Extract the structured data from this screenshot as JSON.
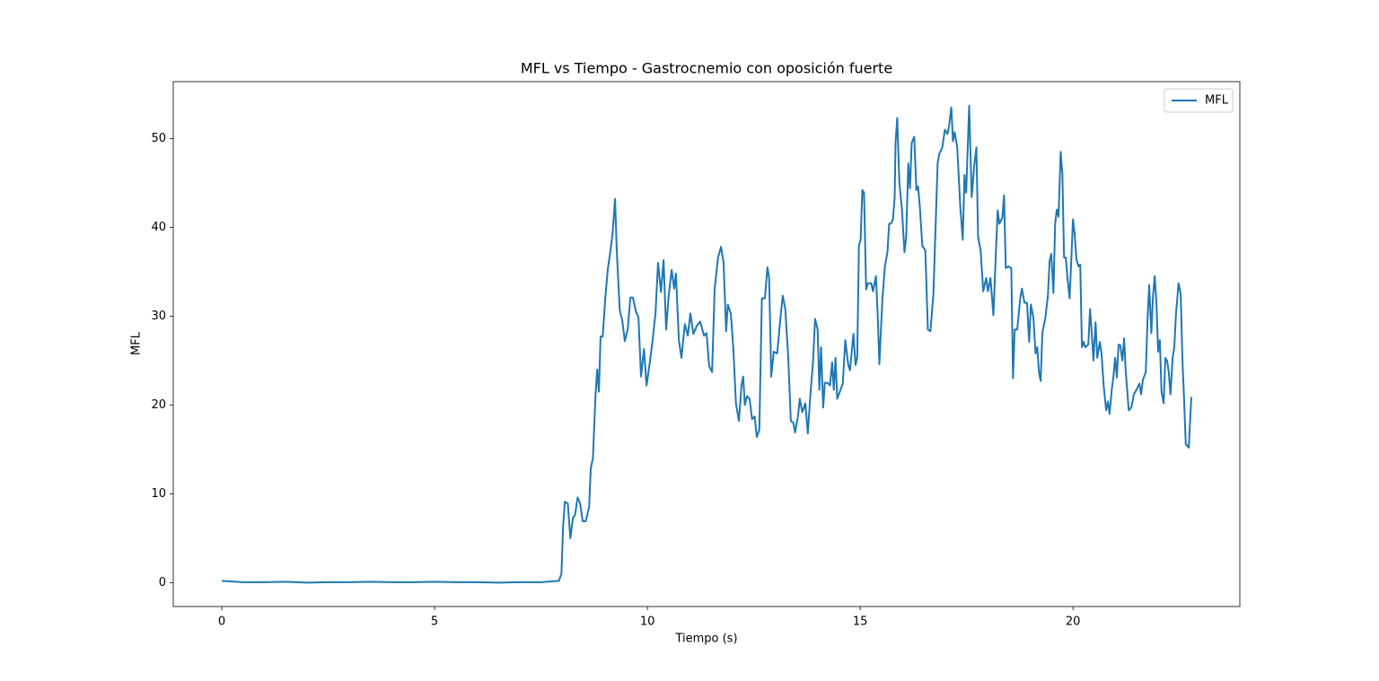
{
  "chart_data": {
    "type": "line",
    "title": "MFL vs Tiempo - Gastrocnemio con oposición fuerte",
    "x_label": "Tiempo (s)",
    "y_label": "MFL",
    "x": [
      0,
      0.5,
      1,
      1.5,
      2,
      2.5,
      3,
      3.5,
      4,
      4.5,
      5,
      5.5,
      6,
      6.5,
      7,
      7.5,
      7.92,
      7.98,
      8.02,
      8.06,
      8.13,
      8.19,
      8.25,
      8.3,
      8.36,
      8.42,
      8.48,
      8.55,
      8.63,
      8.67,
      8.72,
      8.78,
      8.82,
      8.86,
      8.9,
      8.95,
      9.01,
      9.07,
      9.13,
      9.18,
      9.24,
      9.28,
      9.35,
      9.41,
      9.47,
      9.54,
      9.6,
      9.66,
      9.73,
      9.79,
      9.85,
      9.92,
      9.98,
      10.06,
      10.12,
      10.19,
      10.25,
      10.32,
      10.38,
      10.44,
      10.5,
      10.57,
      10.63,
      10.67,
      10.74,
      10.8,
      10.88,
      10.95,
      11.01,
      11.08,
      11.16,
      11.24,
      11.33,
      11.39,
      11.45,
      11.52,
      11.58,
      11.66,
      11.73,
      11.79,
      11.85,
      11.89,
      11.96,
      12.02,
      12.08,
      12.15,
      12.21,
      12.25,
      12.29,
      12.34,
      12.4,
      12.46,
      12.52,
      12.57,
      12.63,
      12.69,
      12.76,
      12.82,
      12.86,
      12.91,
      12.97,
      13.05,
      13.12,
      13.18,
      13.24,
      13.31,
      13.37,
      13.43,
      13.47,
      13.54,
      13.58,
      13.64,
      13.71,
      13.77,
      13.83,
      13.89,
      13.94,
      14.0,
      14.04,
      14.08,
      14.13,
      14.17,
      14.23,
      14.29,
      14.34,
      14.38,
      14.42,
      14.46,
      14.53,
      14.59,
      14.65,
      14.72,
      14.76,
      14.84,
      14.89,
      14.93,
      14.97,
      15.01,
      15.05,
      15.09,
      15.14,
      15.18,
      15.26,
      15.3,
      15.37,
      15.41,
      15.45,
      15.52,
      15.58,
      15.64,
      15.68,
      15.72,
      15.77,
      15.81,
      15.83,
      15.87,
      15.92,
      15.98,
      16.04,
      16.08,
      16.13,
      16.17,
      16.21,
      16.27,
      16.32,
      16.36,
      16.4,
      16.46,
      16.53,
      16.59,
      16.65,
      16.72,
      16.78,
      16.82,
      16.86,
      16.93,
      16.99,
      17.05,
      17.09,
      17.14,
      17.18,
      17.22,
      17.28,
      17.35,
      17.41,
      17.45,
      17.49,
      17.56,
      17.62,
      17.68,
      17.73,
      17.77,
      17.83,
      17.89,
      17.96,
      18.0,
      18.06,
      18.13,
      18.19,
      18.23,
      18.27,
      18.34,
      18.38,
      18.42,
      18.48,
      18.55,
      18.59,
      18.63,
      18.69,
      18.76,
      18.8,
      18.86,
      18.92,
      18.97,
      19.01,
      19.07,
      19.12,
      19.16,
      19.2,
      19.24,
      19.28,
      19.35,
      19.41,
      19.45,
      19.49,
      19.54,
      19.58,
      19.62,
      19.66,
      19.71,
      19.75,
      19.79,
      19.83,
      19.87,
      19.92,
      19.96,
      20.0,
      20.04,
      20.08,
      20.13,
      20.17,
      20.21,
      20.25,
      20.29,
      20.36,
      20.4,
      20.44,
      20.48,
      20.53,
      20.57,
      20.63,
      20.67,
      20.72,
      20.78,
      20.82,
      20.86,
      20.91,
      20.95,
      20.99,
      21.03,
      21.07,
      21.11,
      21.16,
      21.2,
      21.24,
      21.31,
      21.37,
      21.43,
      21.49,
      21.56,
      21.6,
      21.64,
      21.71,
      21.75,
      21.79,
      21.84,
      21.88,
      21.92,
      21.96,
      22.0,
      22.04,
      22.08,
      22.13,
      22.17,
      22.21,
      22.25,
      22.29,
      22.34,
      22.38,
      22.42,
      22.48,
      22.53,
      22.57,
      22.61,
      22.65,
      22.72,
      22.78
    ],
    "series": [
      {
        "name": "MFL",
        "color": "#1f77b4",
        "values": [
          0.2,
          0.05,
          0.05,
          0.1,
          0.0,
          0.05,
          0.05,
          0.1,
          0.05,
          0.05,
          0.1,
          0.05,
          0.05,
          0.0,
          0.05,
          0.05,
          0.2,
          1.0,
          6.4,
          9.1,
          8.9,
          5.0,
          7.3,
          7.6,
          9.6,
          8.9,
          6.9,
          6.9,
          8.5,
          12.9,
          14,
          21,
          24,
          21.5,
          27.7,
          27.7,
          32,
          35.3,
          37.3,
          39.2,
          43.2,
          37.4,
          30.7,
          29.5,
          27.2,
          28.6,
          32.1,
          32.1,
          30.5,
          29.9,
          23.2,
          26.3,
          22.2,
          24.9,
          27.2,
          30.3,
          36,
          32.7,
          36.3,
          28.5,
          32.3,
          35.2,
          33.1,
          34.8,
          27.3,
          25.3,
          29.1,
          27.8,
          30.3,
          28,
          28.9,
          29.4,
          27.8,
          28.1,
          24.4,
          23.7,
          33.1,
          36.6,
          37.8,
          36,
          28.3,
          31.3,
          30.3,
          26.3,
          20.2,
          18.2,
          22.2,
          23.2,
          20,
          21,
          20.7,
          18.4,
          18.7,
          16.4,
          17.2,
          32,
          32,
          35.5,
          34.3,
          23.2,
          26,
          25.8,
          29.5,
          32.3,
          30.8,
          25.3,
          18.2,
          18,
          16.9,
          18.8,
          20.7,
          19.2,
          20.2,
          16.8,
          21.2,
          24.7,
          29.7,
          28.5,
          21.7,
          26.5,
          19.7,
          22.5,
          22.5,
          22.2,
          24.8,
          21.7,
          25.3,
          20.7,
          21.6,
          22.4,
          27.3,
          24.5,
          23.9,
          28,
          24.5,
          25.3,
          37.9,
          38.6,
          44.2,
          43.9,
          33,
          33.7,
          33.7,
          32.8,
          34.5,
          30.3,
          24.6,
          31.8,
          35.6,
          37.2,
          40.4,
          40.4,
          40.9,
          43.4,
          49.5,
          52.3,
          45,
          42.1,
          37.2,
          38.9,
          47.2,
          44.4,
          49.5,
          50.2,
          44.2,
          44.6,
          42.4,
          37.9,
          37.4,
          28.5,
          28.3,
          32.5,
          41.4,
          47.3,
          48.3,
          49,
          51,
          50.5,
          51.5,
          53.5,
          49.7,
          50.7,
          49,
          42.4,
          38.6,
          45.9,
          43.9,
          53.7,
          43.4,
          47,
          49,
          38.9,
          37.4,
          32.8,
          34.3,
          32.8,
          34.3,
          30.1,
          37.4,
          41.9,
          40.4,
          41.1,
          43.6,
          35.4,
          35.6,
          35.4,
          23,
          28.5,
          28.5,
          32,
          33.1,
          31.5,
          31.5,
          27.1,
          31.3,
          29.8,
          25.8,
          26.5,
          23.7,
          22.7,
          28.1,
          29.8,
          32.3,
          36.2,
          37,
          32.6,
          40.4,
          42,
          41.2,
          48.5,
          46,
          36.6,
          36.6,
          34.3,
          32,
          36.4,
          40.9,
          39.2,
          36.4,
          35.6,
          35.8,
          26.5,
          27.1,
          26.5,
          26.8,
          30.8,
          28.1,
          25,
          29.3,
          25.3,
          27.1,
          25.8,
          22.2,
          19.4,
          20.4,
          19,
          21.7,
          23.2,
          25.3,
          23.1,
          26.8,
          26.7,
          25,
          27.5,
          23.7,
          19.4,
          19.7,
          21.2,
          21.7,
          22.4,
          21.2,
          22.8,
          23.7,
          29.5,
          33.5,
          28.1,
          32.3,
          34.5,
          31.5,
          26,
          27.3,
          21.5,
          20.2,
          25.3,
          25,
          23.7,
          21.2,
          25.3,
          26.5,
          30.3,
          33.7,
          32.5,
          25.3,
          20.6,
          15.6,
          15.2,
          20.9
        ]
      }
    ],
    "xlim": [
      -1.14,
      23.92
    ],
    "ylim": [
      -2.69,
      56.4
    ],
    "xticks": [
      0,
      5,
      10,
      15,
      20
    ],
    "yticks": [
      0,
      10,
      20,
      30,
      40,
      50
    ],
    "grid": false,
    "legend": "upper right"
  }
}
